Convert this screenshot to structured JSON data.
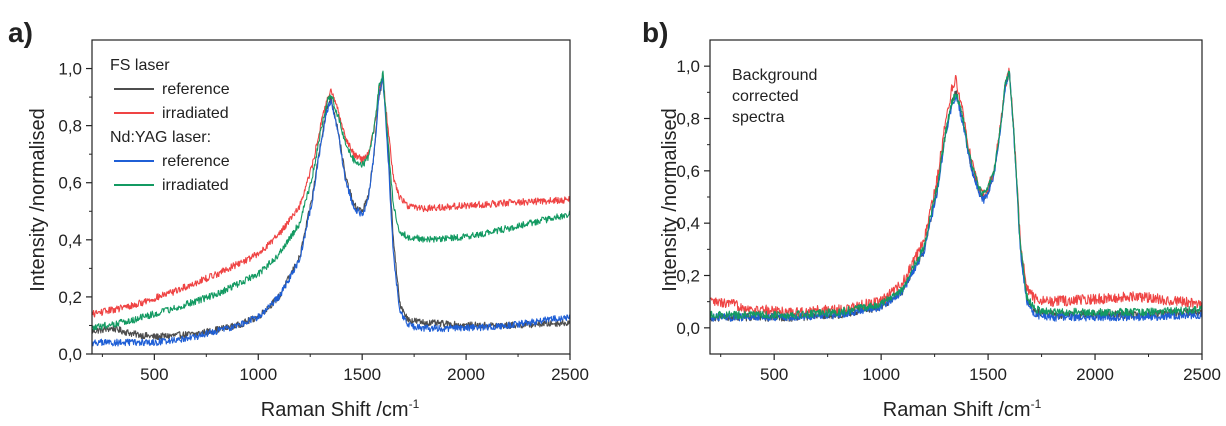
{
  "colors": {
    "fs_reference": "#4d4d4d",
    "fs_irradiated": "#ef4444",
    "nd_reference": "#1f5fd6",
    "nd_irradiated": "#139a62",
    "axis": "#222222"
  },
  "chart_data": [
    {
      "panel": "a)",
      "type": "line",
      "xlabel": "Raman Shift /cm",
      "xlabel_sup": "-1",
      "ylabel": "Intensity /normalised",
      "xlim": [
        200,
        2500
      ],
      "ylim": [
        0,
        1.1
      ],
      "xticks": [
        500,
        1000,
        1500,
        2000,
        2500
      ],
      "xtick_labels": [
        "500",
        "1000",
        "1500",
        "2000",
        "2500"
      ],
      "yticks": [
        0,
        0.2,
        0.4,
        0.6,
        0.8,
        1.0
      ],
      "ytick_labels": [
        "0,0",
        "0,2",
        "0,4",
        "0,6",
        "0,8",
        "1,0"
      ],
      "grid": false,
      "legend_position": "top-left",
      "legend": [
        {
          "type": "header",
          "text": "FS laser"
        },
        {
          "type": "item",
          "text": "reference",
          "series": 0
        },
        {
          "type": "item",
          "text": "irradiated",
          "series": 1
        },
        {
          "type": "header",
          "text": "Nd:YAG laser:"
        },
        {
          "type": "item",
          "text": "reference",
          "series": 2
        },
        {
          "type": "item",
          "text": "irradiated",
          "series": 3
        }
      ],
      "series": [
        {
          "name": "FS laser reference",
          "color_key": "fs_reference",
          "noise": 0.012,
          "x": [
            200,
            300,
            400,
            500,
            700,
            900,
            1000,
            1100,
            1200,
            1260,
            1300,
            1330,
            1350,
            1380,
            1420,
            1460,
            1500,
            1530,
            1560,
            1580,
            1600,
            1620,
            1650,
            1680,
            1720,
            1800,
            2000,
            2200,
            2500
          ],
          "y": [
            0.08,
            0.09,
            0.07,
            0.06,
            0.07,
            0.1,
            0.13,
            0.2,
            0.34,
            0.55,
            0.74,
            0.86,
            0.9,
            0.8,
            0.62,
            0.52,
            0.5,
            0.55,
            0.72,
            0.9,
            0.97,
            0.78,
            0.4,
            0.18,
            0.12,
            0.11,
            0.1,
            0.1,
            0.11
          ]
        },
        {
          "name": "FS laser irradiated",
          "color_key": "fs_irradiated",
          "noise": 0.012,
          "x": [
            200,
            400,
            600,
            800,
            1000,
            1100,
            1200,
            1260,
            1300,
            1330,
            1350,
            1380,
            1420,
            1460,
            1500,
            1530,
            1560,
            1580,
            1600,
            1620,
            1650,
            1680,
            1720,
            1800,
            2000,
            2200,
            2500
          ],
          "y": [
            0.14,
            0.17,
            0.22,
            0.28,
            0.35,
            0.42,
            0.52,
            0.66,
            0.8,
            0.89,
            0.92,
            0.86,
            0.76,
            0.7,
            0.68,
            0.7,
            0.8,
            0.92,
            0.97,
            0.82,
            0.62,
            0.55,
            0.52,
            0.51,
            0.52,
            0.53,
            0.54
          ]
        },
        {
          "name": "Nd:YAG laser reference",
          "color_key": "nd_reference",
          "noise": 0.012,
          "x": [
            200,
            300,
            400,
            500,
            600,
            700,
            800,
            900,
            1000,
            1100,
            1200,
            1260,
            1300,
            1330,
            1350,
            1380,
            1420,
            1460,
            1500,
            1530,
            1560,
            1580,
            1600,
            1620,
            1650,
            1680,
            1720,
            1800,
            2000,
            2200,
            2500
          ],
          "y": [
            0.04,
            0.04,
            0.04,
            0.04,
            0.05,
            0.06,
            0.08,
            0.1,
            0.13,
            0.2,
            0.33,
            0.54,
            0.73,
            0.85,
            0.89,
            0.79,
            0.61,
            0.51,
            0.49,
            0.54,
            0.72,
            0.9,
            0.96,
            0.75,
            0.35,
            0.15,
            0.1,
            0.09,
            0.09,
            0.1,
            0.13
          ]
        },
        {
          "name": "Nd:YAG laser irradiated",
          "color_key": "nd_irradiated",
          "noise": 0.012,
          "x": [
            200,
            400,
            600,
            800,
            1000,
            1100,
            1200,
            1260,
            1300,
            1330,
            1350,
            1380,
            1420,
            1460,
            1500,
            1530,
            1560,
            1580,
            1600,
            1620,
            1650,
            1680,
            1720,
            1800,
            2000,
            2200,
            2500
          ],
          "y": [
            0.09,
            0.12,
            0.16,
            0.21,
            0.28,
            0.35,
            0.46,
            0.62,
            0.78,
            0.88,
            0.91,
            0.84,
            0.74,
            0.68,
            0.66,
            0.69,
            0.8,
            0.93,
            0.98,
            0.78,
            0.52,
            0.43,
            0.41,
            0.4,
            0.41,
            0.44,
            0.49
          ]
        }
      ]
    },
    {
      "panel": "b)",
      "type": "line",
      "xlabel": "Raman Shift /cm",
      "xlabel_sup": "-1",
      "ylabel": "Intensity /normalised",
      "xlim": [
        200,
        2500
      ],
      "ylim": [
        -0.1,
        1.1
      ],
      "xticks": [
        500,
        1000,
        1500,
        2000,
        2500
      ],
      "xtick_labels": [
        "500",
        "1000",
        "1500",
        "2000",
        "2500"
      ],
      "yticks": [
        0,
        0.2,
        0.4,
        0.6,
        0.8,
        1.0
      ],
      "ytick_labels": [
        "0,0",
        "0,2",
        "0,4",
        "0,6",
        "0,8",
        "1,0"
      ],
      "grid": false,
      "annotation": [
        "Background",
        "corrected",
        "spectra"
      ],
      "series": [
        {
          "name": "FS laser reference",
          "color_key": "fs_reference",
          "noise": 0.015,
          "x": [
            200,
            400,
            600,
            800,
            1000,
            1100,
            1200,
            1260,
            1300,
            1330,
            1350,
            1380,
            1420,
            1460,
            1480,
            1500,
            1530,
            1560,
            1580,
            1600,
            1620,
            1650,
            1680,
            1720,
            1800,
            2000,
            2200,
            2500
          ],
          "y": [
            0.04,
            0.04,
            0.04,
            0.05,
            0.08,
            0.14,
            0.3,
            0.52,
            0.74,
            0.86,
            0.9,
            0.8,
            0.62,
            0.52,
            0.5,
            0.52,
            0.6,
            0.78,
            0.93,
            0.98,
            0.75,
            0.32,
            0.12,
            0.06,
            0.05,
            0.05,
            0.05,
            0.06
          ]
        },
        {
          "name": "FS laser irradiated",
          "color_key": "fs_irradiated",
          "noise": 0.02,
          "x": [
            200,
            300,
            400,
            600,
            800,
            1000,
            1100,
            1200,
            1260,
            1300,
            1330,
            1350,
            1380,
            1420,
            1460,
            1480,
            1500,
            1530,
            1560,
            1580,
            1600,
            1620,
            1650,
            1680,
            1720,
            1800,
            2000,
            2200,
            2500
          ],
          "y": [
            0.1,
            0.09,
            0.07,
            0.06,
            0.07,
            0.1,
            0.17,
            0.33,
            0.56,
            0.78,
            0.91,
            0.95,
            0.84,
            0.64,
            0.53,
            0.51,
            0.53,
            0.61,
            0.79,
            0.93,
            0.98,
            0.76,
            0.34,
            0.15,
            0.11,
            0.1,
            0.11,
            0.12,
            0.09
          ]
        },
        {
          "name": "Nd:YAG laser reference",
          "color_key": "nd_reference",
          "noise": 0.015,
          "x": [
            200,
            400,
            600,
            800,
            1000,
            1100,
            1200,
            1260,
            1300,
            1330,
            1350,
            1380,
            1420,
            1460,
            1480,
            1500,
            1530,
            1560,
            1580,
            1600,
            1620,
            1650,
            1680,
            1720,
            1800,
            2000,
            2200,
            2500
          ],
          "y": [
            0.04,
            0.04,
            0.04,
            0.05,
            0.08,
            0.14,
            0.29,
            0.51,
            0.73,
            0.85,
            0.89,
            0.79,
            0.61,
            0.51,
            0.49,
            0.51,
            0.59,
            0.77,
            0.92,
            0.98,
            0.74,
            0.3,
            0.1,
            0.05,
            0.04,
            0.04,
            0.04,
            0.05
          ]
        },
        {
          "name": "Nd:YAG laser irradiated",
          "color_key": "nd_irradiated",
          "noise": 0.015,
          "x": [
            200,
            400,
            600,
            800,
            1000,
            1100,
            1200,
            1260,
            1300,
            1330,
            1350,
            1380,
            1420,
            1460,
            1480,
            1500,
            1530,
            1560,
            1580,
            1600,
            1620,
            1650,
            1680,
            1720,
            1800,
            2000,
            2200,
            2500
          ],
          "y": [
            0.05,
            0.05,
            0.05,
            0.06,
            0.09,
            0.15,
            0.31,
            0.53,
            0.74,
            0.86,
            0.9,
            0.81,
            0.63,
            0.53,
            0.51,
            0.53,
            0.61,
            0.78,
            0.93,
            0.98,
            0.75,
            0.33,
            0.12,
            0.07,
            0.06,
            0.06,
            0.06,
            0.07
          ]
        }
      ]
    }
  ]
}
